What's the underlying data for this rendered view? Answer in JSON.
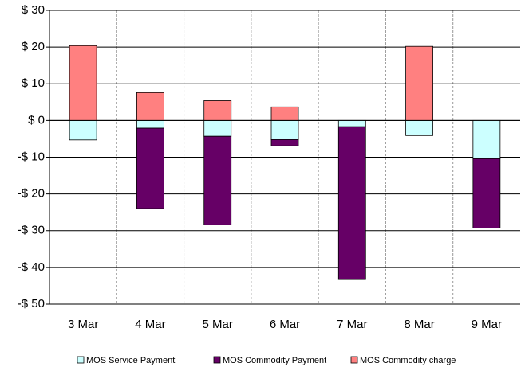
{
  "chart_data": {
    "type": "stacked-bar",
    "categories": [
      "3 Mar",
      "4 Mar",
      "5 Mar",
      "6 Mar",
      "7 Mar",
      "8 Mar",
      "9 Mar"
    ],
    "series": [
      {
        "name": "MOS Service Payment",
        "color": "#ccffff",
        "values": [
          -5.3,
          -2.1,
          -4.3,
          -5.2,
          -1.7,
          -4.1,
          -10.4
        ]
      },
      {
        "name": "MOS Commodity Payment",
        "color": "#660066",
        "values": [
          0,
          -21.9,
          -24.1,
          -1.7,
          -41.6,
          0,
          -18.9
        ]
      },
      {
        "name": "MOS Commodity charge",
        "color": "#ff8080",
        "values": [
          20.4,
          7.6,
          5.4,
          3.7,
          0,
          20.2,
          0
        ]
      }
    ],
    "ylim": [
      -50,
      30
    ],
    "yticks": [
      {
        "value": -50,
        "label": "-$ 50"
      },
      {
        "value": -40,
        "label": "-$ 40"
      },
      {
        "value": -30,
        "label": "-$ 30"
      },
      {
        "value": -20,
        "label": "-$ 20"
      },
      {
        "value": -10,
        "label": "-$ 10"
      },
      {
        "value": 0,
        "label": "$ 0"
      },
      {
        "value": 10,
        "label": "$ 10"
      },
      {
        "value": 20,
        "label": "$ 20"
      },
      {
        "value": 30,
        "label": "$ 30"
      }
    ],
    "grid": true
  }
}
